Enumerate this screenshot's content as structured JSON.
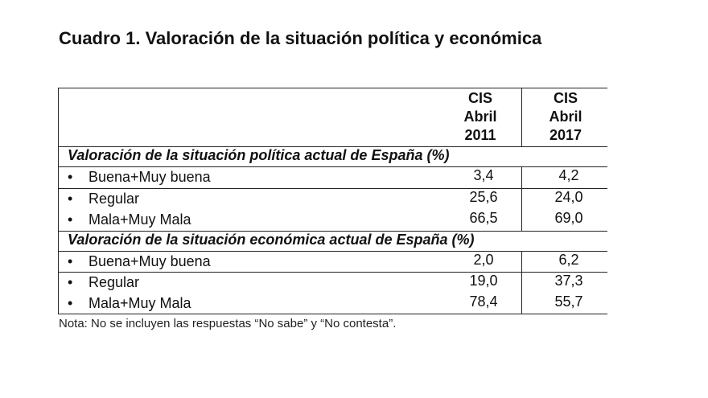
{
  "title": "Cuadro 1. Valoración de la situación política y económica",
  "columns": [
    {
      "line1": "CIS",
      "line2": "Abril",
      "line3": "2011"
    },
    {
      "line1": "CIS",
      "line2": "Abril",
      "line3": "2017"
    }
  ],
  "sections": [
    {
      "heading": "Valoración de la situación política actual de España (%)",
      "rows": [
        {
          "label": "Buena+Muy buena",
          "v2011": "3,4",
          "v2017": "4,2"
        },
        {
          "label": "Regular",
          "v2011": "25,6",
          "v2017": "24,0"
        },
        {
          "label": "Mala+Muy Mala",
          "v2011": "66,5",
          "v2017": "69,0"
        }
      ]
    },
    {
      "heading": "Valoración de la situación económica actual de España (%)",
      "rows": [
        {
          "label": "Buena+Muy buena",
          "v2011": "2,0",
          "v2017": "6,2"
        },
        {
          "label": "Regular",
          "v2011": "19,0",
          "v2017": "37,3"
        },
        {
          "label": "Mala+Muy Mala",
          "v2011": "78,4",
          "v2017": "55,7"
        }
      ]
    }
  ],
  "bullet": "•",
  "note": "Nota: No se incluyen las respuestas “No sabe” y “No contesta”."
}
